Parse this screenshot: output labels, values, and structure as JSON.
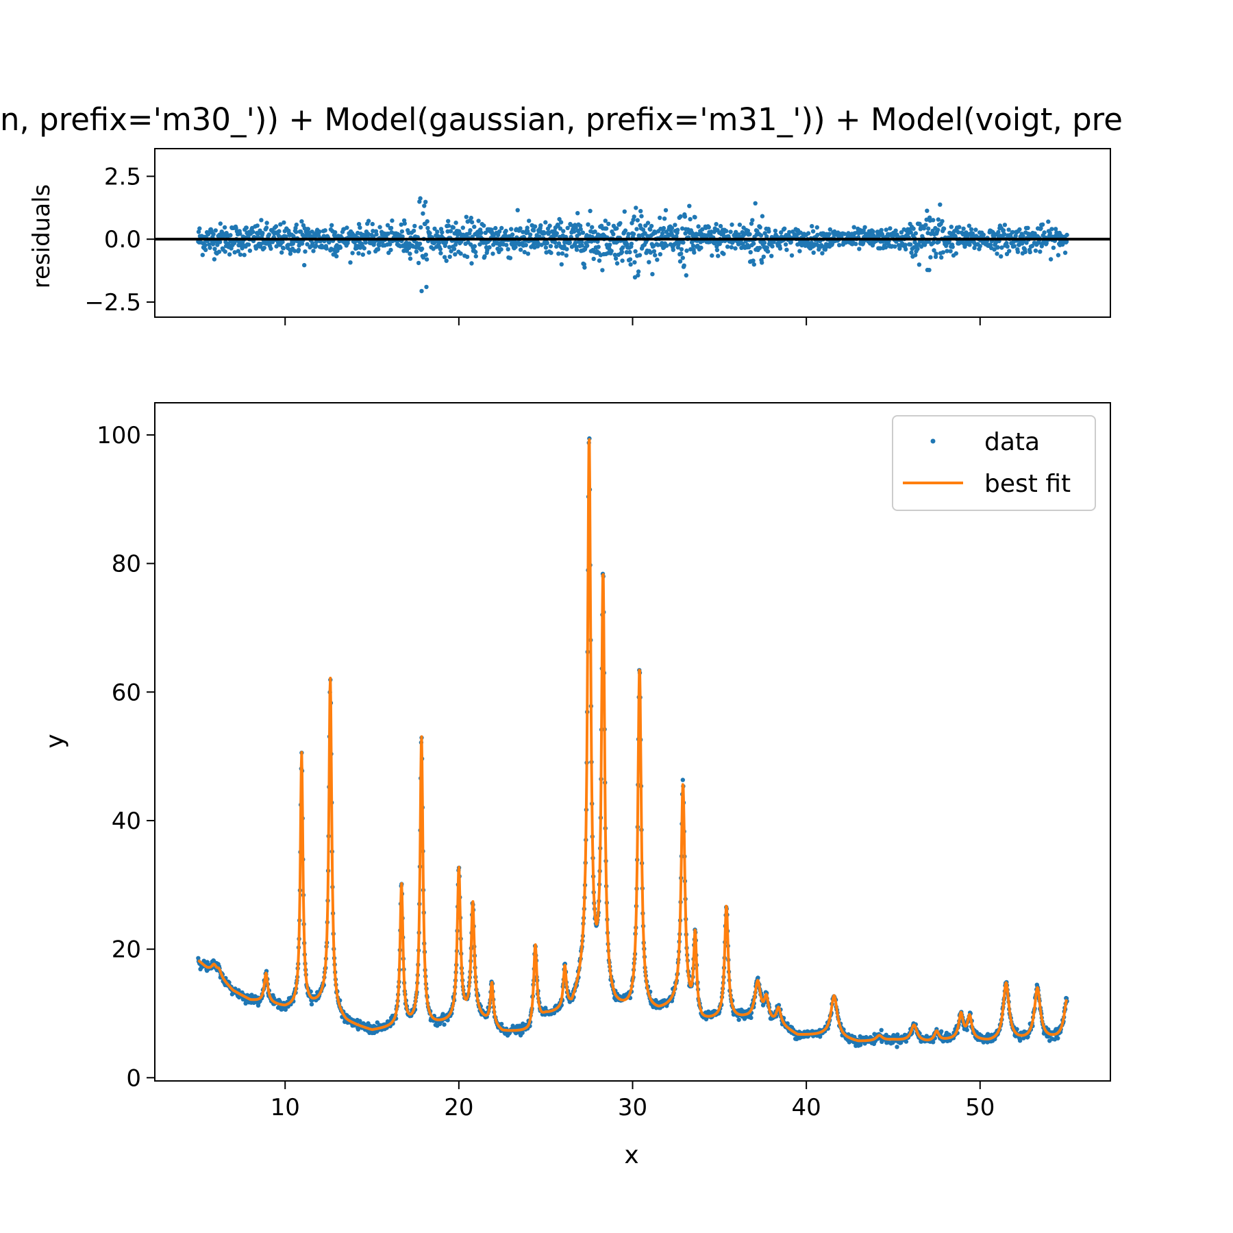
{
  "chart_data": [
    {
      "type": "scatter",
      "title": "n, prefix='m30_')) + Model(gaussian, prefix='m31_')) + Model(voigt, pre",
      "xlabel": "",
      "ylabel": "residuals",
      "xlim": [
        2.5,
        57.5
      ],
      "ylim": [
        -3.1,
        3.6
      ],
      "xticks": [
        10,
        20,
        30,
        40,
        50
      ],
      "show_xtick_labels": false,
      "yticks": [
        -2.5,
        0.0,
        2.5
      ],
      "ytick_labels": [
        "−2.5",
        "0.0",
        "2.5"
      ],
      "zero_line": true,
      "grid": false,
      "colors": {
        "points": "#1f77b4",
        "zero_line": "#000000"
      },
      "x_range": [
        5,
        55
      ],
      "n_points": 2000,
      "envelope": [
        [
          5,
          0.8
        ],
        [
          10.8,
          0.8
        ],
        [
          11,
          1.7
        ],
        [
          11.2,
          0.7
        ],
        [
          12.5,
          0.8
        ],
        [
          12.7,
          1.5
        ],
        [
          13,
          0.7
        ],
        [
          16.5,
          0.7
        ],
        [
          16.8,
          1.0
        ],
        [
          17.2,
          0.7
        ],
        [
          17.6,
          0.9
        ],
        [
          17.8,
          3.0
        ],
        [
          18.0,
          2.0
        ],
        [
          18.3,
          0.8
        ],
        [
          20.0,
          0.9
        ],
        [
          20.3,
          1.0
        ],
        [
          24.5,
          0.9
        ],
        [
          26.0,
          1.0
        ],
        [
          27.5,
          1.2
        ],
        [
          28.0,
          1.4
        ],
        [
          28.4,
          1.0
        ],
        [
          30.0,
          1.3
        ],
        [
          30.3,
          2.7
        ],
        [
          30.6,
          1.5
        ],
        [
          31,
          0.9
        ],
        [
          32.5,
          1.0
        ],
        [
          33.0,
          1.8
        ],
        [
          33.5,
          1.2
        ],
        [
          34,
          0.8
        ],
        [
          36.5,
          0.9
        ],
        [
          37.0,
          1.8
        ],
        [
          37.5,
          1.5
        ],
        [
          38,
          0.6
        ],
        [
          45.5,
          0.5
        ],
        [
          46.5,
          1.2
        ],
        [
          47.0,
          1.5
        ],
        [
          47.5,
          2.2
        ],
        [
          48.0,
          0.9
        ],
        [
          49,
          0.6
        ],
        [
          51.5,
          0.7
        ],
        [
          55,
          0.7
        ]
      ],
      "series": [
        {
          "values": []
        }
      ]
    },
    {
      "type": "line",
      "title": "",
      "xlabel": "x",
      "ylabel": "y",
      "xlim": [
        2.5,
        57.5
      ],
      "ylim": [
        -0.5,
        105
      ],
      "xticks": [
        10,
        20,
        30,
        40,
        50
      ],
      "yticks": [
        0,
        20,
        40,
        60,
        80,
        100
      ],
      "grid": false,
      "legend": {
        "position": "top-right",
        "entries": [
          "data",
          "best fit"
        ]
      },
      "colors": {
        "data": "#1f77b4",
        "best_fit": "#ff7f0e"
      },
      "x_range": [
        5,
        55
      ],
      "n_points": 2000,
      "baseline": [
        [
          5,
          18.2
        ],
        [
          5.5,
          17.0
        ],
        [
          6,
          16.3
        ],
        [
          7,
          13.5
        ],
        [
          8,
          12.0
        ],
        [
          9,
          11.6
        ],
        [
          10,
          10.8
        ],
        [
          11.5,
          11.0
        ],
        [
          12.2,
          11.5
        ],
        [
          13.5,
          8.5
        ],
        [
          15,
          7.2
        ],
        [
          16.5,
          7.8
        ],
        [
          18.5,
          8.0
        ],
        [
          19.5,
          8.5
        ],
        [
          21,
          9.5
        ],
        [
          22.5,
          7.0
        ],
        [
          24,
          7.0
        ],
        [
          25,
          9.5
        ],
        [
          26.5,
          10.5
        ],
        [
          27.2,
          15.0
        ],
        [
          29,
          10.5
        ],
        [
          30,
          10.0
        ],
        [
          31.5,
          10.0
        ],
        [
          32.5,
          11.0
        ],
        [
          34,
          8.5
        ],
        [
          35,
          9.0
        ],
        [
          36.5,
          9.0
        ],
        [
          38.5,
          8.0
        ],
        [
          39.5,
          6.5
        ],
        [
          41,
          6.5
        ],
        [
          43,
          5.5
        ],
        [
          45,
          5.8
        ],
        [
          47,
          5.5
        ],
        [
          49,
          6.0
        ],
        [
          50.5,
          5.5
        ],
        [
          55,
          6.0
        ]
      ],
      "peaks": [
        {
          "center": 5.9,
          "height": 1.0,
          "width": 0.15
        },
        {
          "center": 6.2,
          "height": 1.0,
          "width": 0.15
        },
        {
          "center": 8.9,
          "height": 4.5,
          "width": 0.12
        },
        {
          "center": 10.95,
          "height": 39.5,
          "width": 0.09
        },
        {
          "center": 12.6,
          "height": 51.5,
          "width": 0.1
        },
        {
          "center": 16.7,
          "height": 22.0,
          "width": 0.1
        },
        {
          "center": 17.85,
          "height": 45.0,
          "width": 0.1
        },
        {
          "center": 20.0,
          "height": 23.5,
          "width": 0.11
        },
        {
          "center": 20.8,
          "height": 17.5,
          "width": 0.11
        },
        {
          "center": 21.9,
          "height": 6.5,
          "width": 0.1
        },
        {
          "center": 24.4,
          "height": 12.5,
          "width": 0.11
        },
        {
          "center": 26.1,
          "height": 6.5,
          "width": 0.1
        },
        {
          "center": 27.5,
          "height": 84.5,
          "width": 0.11
        },
        {
          "center": 28.3,
          "height": 65.0,
          "width": 0.11
        },
        {
          "center": 30.4,
          "height": 53.5,
          "width": 0.12
        },
        {
          "center": 32.9,
          "height": 35.0,
          "width": 0.13
        },
        {
          "center": 33.6,
          "height": 12.5,
          "width": 0.1
        },
        {
          "center": 35.4,
          "height": 17.5,
          "width": 0.12
        },
        {
          "center": 37.2,
          "height": 6.0,
          "width": 0.2
        },
        {
          "center": 37.7,
          "height": 3.5,
          "width": 0.15
        },
        {
          "center": 38.4,
          "height": 2.5,
          "width": 0.15
        },
        {
          "center": 41.6,
          "height": 6.5,
          "width": 0.22
        },
        {
          "center": 44.2,
          "height": 0.8,
          "width": 0.2
        },
        {
          "center": 46.2,
          "height": 2.5,
          "width": 0.2
        },
        {
          "center": 47.5,
          "height": 1.5,
          "width": 0.15
        },
        {
          "center": 48.9,
          "height": 3.8,
          "width": 0.15
        },
        {
          "center": 49.4,
          "height": 3.5,
          "width": 0.15
        },
        {
          "center": 51.5,
          "height": 9.0,
          "width": 0.2
        },
        {
          "center": 53.3,
          "height": 8.0,
          "width": 0.2
        },
        {
          "center": 55.0,
          "height": 6.0,
          "width": 0.2
        }
      ],
      "series": [
        {
          "name": "data",
          "values": []
        },
        {
          "name": "best fit",
          "values": []
        }
      ]
    }
  ]
}
